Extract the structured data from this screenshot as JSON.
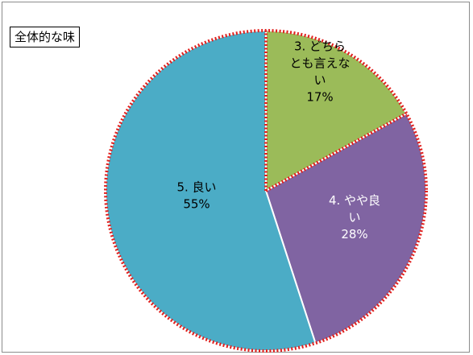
{
  "chart_data": {
    "type": "pie",
    "title": "全体的な味",
    "slices": [
      {
        "label_lines": [
          "3. どちら",
          "とも言えな",
          "い"
        ],
        "pct_text": "17%",
        "value": 17,
        "color": "#9BBB59",
        "text_color": "#000000"
      },
      {
        "label_lines": [
          "4. やや良",
          "い"
        ],
        "pct_text": "28%",
        "value": 28,
        "color": "#8064A2",
        "text_color": "#ffffff"
      },
      {
        "label_lines": [
          "5. 良い"
        ],
        "pct_text": "55%",
        "value": 55,
        "color": "#4BACC6",
        "text_color": "#000000"
      }
    ],
    "border_color": "#E0201E"
  }
}
